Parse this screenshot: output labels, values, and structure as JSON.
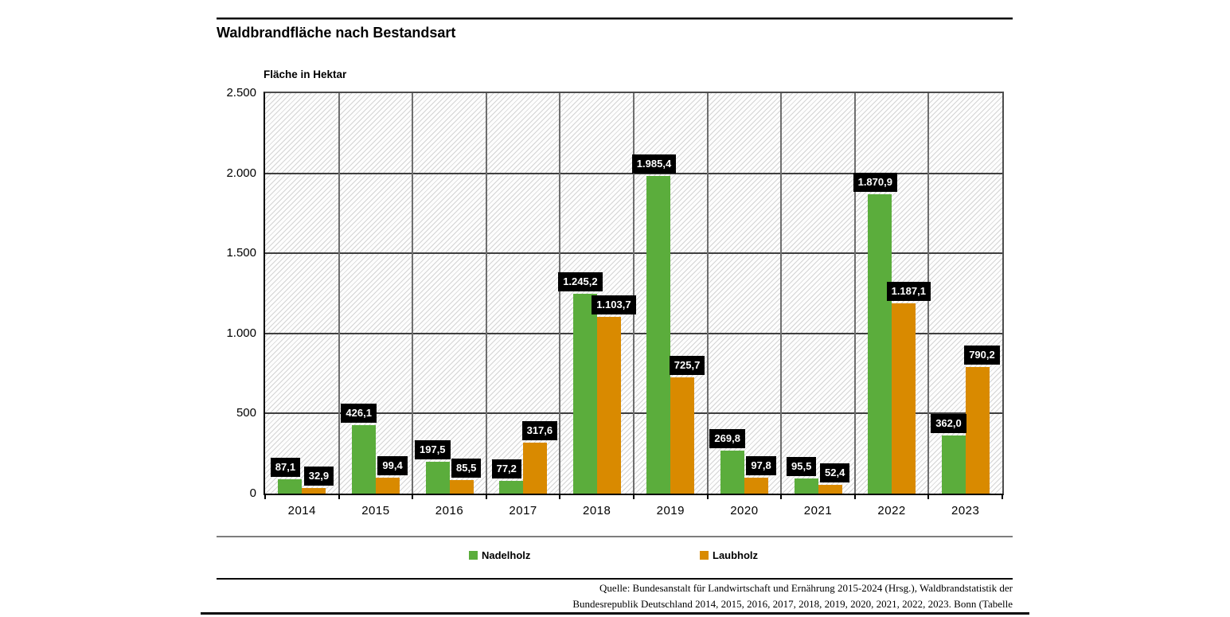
{
  "header": {
    "title": "Waldbrandfläche nach Bestandsart"
  },
  "chart_data": {
    "type": "bar",
    "title": "Waldbrandfläche nach Bestandsart",
    "ylabel": "Fläche in Hektar",
    "xlabel": "",
    "categories": [
      "2014",
      "2015",
      "2016",
      "2017",
      "2018",
      "2019",
      "2020",
      "2021",
      "2022",
      "2023"
    ],
    "series": [
      {
        "name": "Nadelholz",
        "color": "#5bad3c",
        "values": [
          87.1,
          426.1,
          197.5,
          77.2,
          1245.2,
          1985.4,
          269.8,
          95.5,
          1870.9,
          362.0
        ],
        "value_labels": [
          "87,1",
          "426,1",
          "197,5",
          "77,2",
          "1.245,2",
          "1.985,4",
          "269,8",
          "95,5",
          "1.870,9",
          "362,0"
        ]
      },
      {
        "name": "Laubholz",
        "color": "#d98a00",
        "values": [
          32.9,
          99.4,
          85.5,
          317.6,
          1103.7,
          725.7,
          97.8,
          52.4,
          1187.1,
          790.2
        ],
        "value_labels": [
          "32,9",
          "99,4",
          "85,5",
          "317,6",
          "1.103,7",
          "725,7",
          "97,8",
          "52,4",
          "1.187,1",
          "790,2"
        ]
      }
    ],
    "ylim": [
      0,
      2500
    ],
    "yticks": [
      {
        "value": 0,
        "label": "0"
      },
      {
        "value": 500,
        "label": "500"
      },
      {
        "value": 1000,
        "label": "1.000"
      },
      {
        "value": 1500,
        "label": "1.500"
      },
      {
        "value": 2000,
        "label": "2.000"
      },
      {
        "value": 2500,
        "label": "2.500"
      }
    ],
    "grid": true,
    "hatch_background": true,
    "legend_position": "bottom",
    "value_label_style": {
      "background": "#000000",
      "text": "#ffffff"
    }
  },
  "legend": {
    "items": [
      {
        "label": "Nadelholz",
        "color": "#5bad3c"
      },
      {
        "label": "Laubholz",
        "color": "#d98a00"
      }
    ]
  },
  "source": {
    "line1": "Quelle: Bundesanstalt für Landwirtschaft und Ernährung 2015-2024 (Hrsg.), Waldbrandstatistik der",
    "line2": "Bundesrepublik Deutschland 2014, 2015, 2016, 2017, 2018, 2019, 2020, 2021, 2022, 2023. Bonn (Tabelle"
  }
}
